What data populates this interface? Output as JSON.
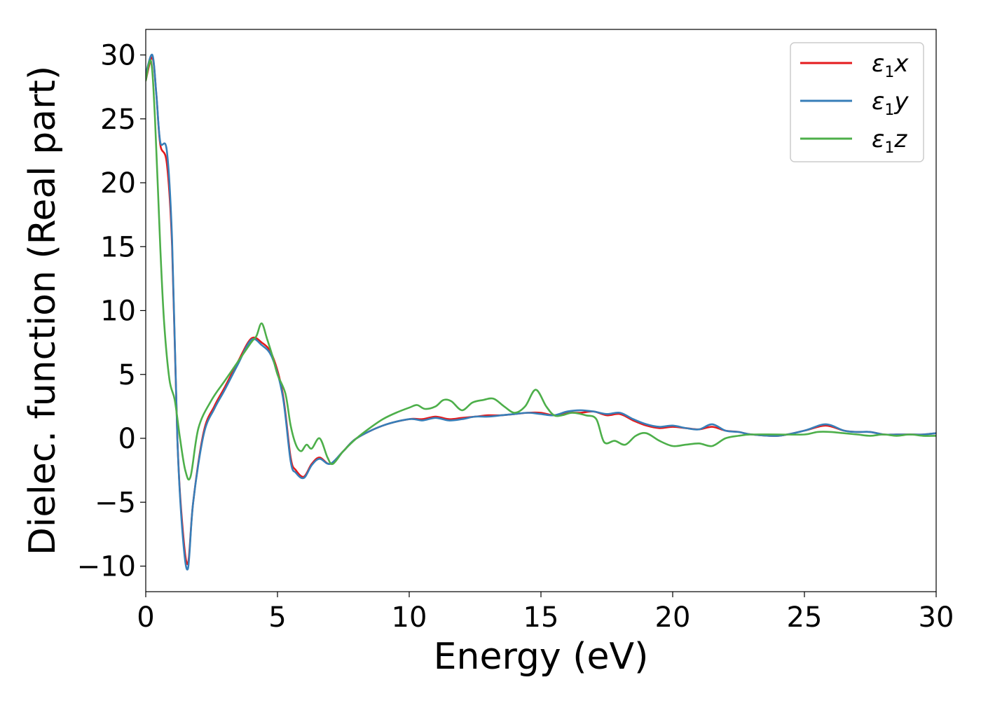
{
  "chart_data": {
    "type": "line",
    "title": "",
    "xlabel": "Energy (eV)",
    "ylabel": "Dielec. function (Real part)",
    "xlim": [
      0,
      30
    ],
    "ylim": [
      -12,
      32
    ],
    "xticks": [
      0,
      5,
      10,
      15,
      20,
      25,
      30
    ],
    "xtick_labels": [
      "0",
      "5",
      "10",
      "15",
      "20",
      "25",
      "30"
    ],
    "yticks": [
      -10,
      -5,
      0,
      5,
      10,
      15,
      20,
      25,
      30
    ],
    "ytick_labels": [
      "−10",
      "−5",
      "0",
      "5",
      "10",
      "15",
      "20",
      "25",
      "30"
    ],
    "grid": false,
    "legend_position": "top-right",
    "series": [
      {
        "name": "ε1x",
        "name_base": "ε",
        "name_sub": "1",
        "name_var": "x",
        "color": "#e41a1c",
        "x": [
          0,
          0.25,
          0.4,
          0.55,
          0.8,
          1.0,
          1.2,
          1.4,
          1.6,
          1.8,
          2.2,
          2.6,
          3.0,
          3.5,
          4.0,
          4.4,
          4.8,
          5.2,
          5.5,
          5.7,
          6.0,
          6.3,
          6.6,
          7.0,
          7.5,
          8.0,
          9.0,
          10.0,
          10.5,
          11.0,
          11.5,
          12.0,
          12.5,
          13.0,
          13.5,
          14.0,
          14.5,
          15.0,
          15.5,
          16.0,
          16.5,
          17.0,
          17.5,
          18.0,
          18.5,
          19.0,
          19.5,
          20.0,
          20.5,
          21.0,
          21.5,
          22.0,
          22.5,
          23.0,
          24.0,
          25.0,
          25.8,
          26.5,
          27.0,
          27.5,
          28.0,
          28.5,
          29.0,
          29.5,
          30.0
        ],
        "y": [
          28,
          29.8,
          27,
          23,
          21.5,
          15,
          0,
          -7,
          -9.8,
          -5,
          0.5,
          2.5,
          4,
          6,
          7.8,
          7.5,
          6.5,
          3.5,
          -1.5,
          -2.5,
          -3,
          -2,
          -1.5,
          -2,
          -1,
          0,
          1,
          1.5,
          1.5,
          1.7,
          1.5,
          1.6,
          1.7,
          1.8,
          1.8,
          1.9,
          2,
          2,
          1.8,
          2,
          2,
          2.1,
          1.8,
          1.9,
          1.4,
          1,
          0.8,
          0.9,
          0.8,
          0.7,
          0.9,
          0.6,
          0.5,
          0.3,
          0.2,
          0.6,
          1.0,
          0.6,
          0.5,
          0.5,
          0.3,
          0.3,
          0.3,
          0.3,
          0.4
        ]
      },
      {
        "name": "ε1y",
        "name_base": "ε",
        "name_sub": "1",
        "name_var": "y",
        "color": "#377eb8",
        "x": [
          0,
          0.25,
          0.4,
          0.55,
          0.8,
          1.0,
          1.2,
          1.4,
          1.6,
          1.8,
          2.2,
          2.6,
          3.0,
          3.5,
          4.0,
          4.4,
          4.8,
          5.2,
          5.5,
          5.7,
          6.0,
          6.3,
          6.6,
          7.0,
          7.5,
          8.0,
          9.0,
          10.0,
          10.5,
          11.0,
          11.5,
          12.0,
          12.5,
          13.0,
          13.5,
          14.0,
          14.5,
          15.0,
          15.5,
          16.0,
          16.5,
          17.0,
          17.5,
          18.0,
          18.5,
          19.0,
          19.5,
          20.0,
          20.5,
          21.0,
          21.5,
          22.0,
          22.5,
          23.0,
          24.0,
          25.0,
          25.8,
          26.5,
          27.0,
          27.5,
          28.0,
          28.5,
          29.0,
          29.5,
          30.0
        ],
        "y": [
          28.5,
          30,
          27,
          23.2,
          22.5,
          15.5,
          0,
          -7.5,
          -10.2,
          -5,
          0.3,
          2.3,
          3.8,
          5.8,
          7.7,
          7.3,
          6.3,
          3.3,
          -1.8,
          -2.7,
          -3.1,
          -2.1,
          -1.6,
          -2,
          -1,
          0,
          1,
          1.5,
          1.4,
          1.6,
          1.4,
          1.5,
          1.7,
          1.7,
          1.8,
          1.9,
          2,
          1.9,
          1.8,
          2.1,
          2.2,
          2.1,
          1.9,
          2.0,
          1.5,
          1.1,
          0.9,
          1.0,
          0.8,
          0.7,
          1.1,
          0.6,
          0.5,
          0.3,
          0.2,
          0.6,
          1.1,
          0.6,
          0.5,
          0.5,
          0.3,
          0.3,
          0.3,
          0.3,
          0.4
        ]
      },
      {
        "name": "ε1z",
        "name_base": "ε",
        "name_sub": "1",
        "name_var": "z",
        "color": "#4daf4a",
        "x": [
          0,
          0.2,
          0.35,
          0.55,
          0.7,
          0.9,
          1.1,
          1.3,
          1.5,
          1.7,
          2.0,
          2.5,
          3.0,
          3.5,
          4.0,
          4.2,
          4.4,
          4.6,
          4.8,
          5.0,
          5.3,
          5.5,
          5.7,
          5.9,
          6.1,
          6.3,
          6.6,
          6.9,
          7.1,
          7.5,
          8.0,
          8.5,
          9.0,
          9.5,
          10.0,
          10.3,
          10.6,
          11.0,
          11.3,
          11.6,
          12.0,
          12.4,
          12.8,
          13.2,
          13.6,
          14.0,
          14.4,
          14.8,
          15.2,
          15.5,
          15.8,
          16.2,
          16.7,
          17.1,
          17.4,
          17.8,
          18.2,
          18.6,
          19.0,
          19.5,
          20.0,
          20.5,
          21.0,
          21.5,
          22.0,
          22.5,
          23.0,
          24.0,
          25.0,
          25.5,
          26.0,
          26.5,
          27.0,
          27.5,
          28.0,
          28.5,
          29.0,
          29.5,
          30.0
        ],
        "y": [
          28,
          29.5,
          25,
          15,
          9,
          4.6,
          3,
          0,
          -2.5,
          -3,
          0.8,
          3,
          4.5,
          6,
          7.5,
          8,
          9,
          7.8,
          6.5,
          5,
          3.5,
          1,
          -0.5,
          -1,
          -0.5,
          -0.8,
          0,
          -1.5,
          -2,
          -1,
          0,
          0.8,
          1.5,
          2,
          2.4,
          2.6,
          2.3,
          2.5,
          3,
          2.9,
          2.2,
          2.8,
          3,
          3.1,
          2.5,
          2,
          2.5,
          3.8,
          2.5,
          1.8,
          1.8,
          2,
          1.8,
          1.5,
          -0.3,
          -0.2,
          -0.5,
          0.2,
          0.4,
          -0.2,
          -0.6,
          -0.5,
          -0.4,
          -0.6,
          0,
          0.2,
          0.3,
          0.3,
          0.3,
          0.5,
          0.5,
          0.4,
          0.3,
          0.2,
          0.3,
          0.2,
          0.3,
          0.2,
          0.2
        ]
      }
    ]
  }
}
